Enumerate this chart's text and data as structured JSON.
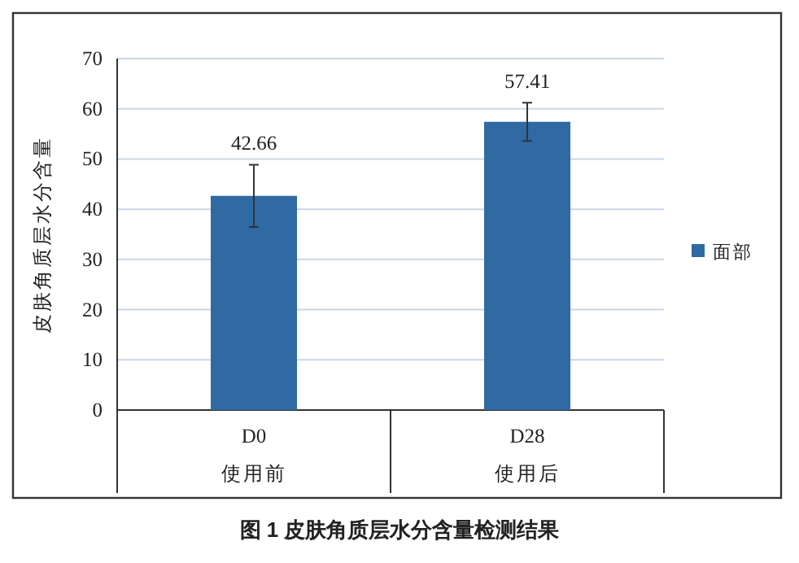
{
  "chart_data": {
    "type": "bar",
    "title": "图 1 皮肤角质层水分含量检测结果",
    "ylabel": "皮肤角质层水分含量",
    "categories": [
      "D0",
      "D28"
    ],
    "series": [
      {
        "name": "面部",
        "color": "#2f6aa3",
        "values": [
          42.66,
          57.41
        ],
        "errors": [
          6.2,
          3.8
        ]
      }
    ],
    "annotations": [
      "使用前",
      "使用后"
    ],
    "ylim": [
      0,
      70
    ],
    "yticks": [
      0,
      10,
      20,
      30,
      40,
      50,
      60,
      70
    ],
    "grid": "y",
    "legend": "right",
    "data_labels": true
  }
}
